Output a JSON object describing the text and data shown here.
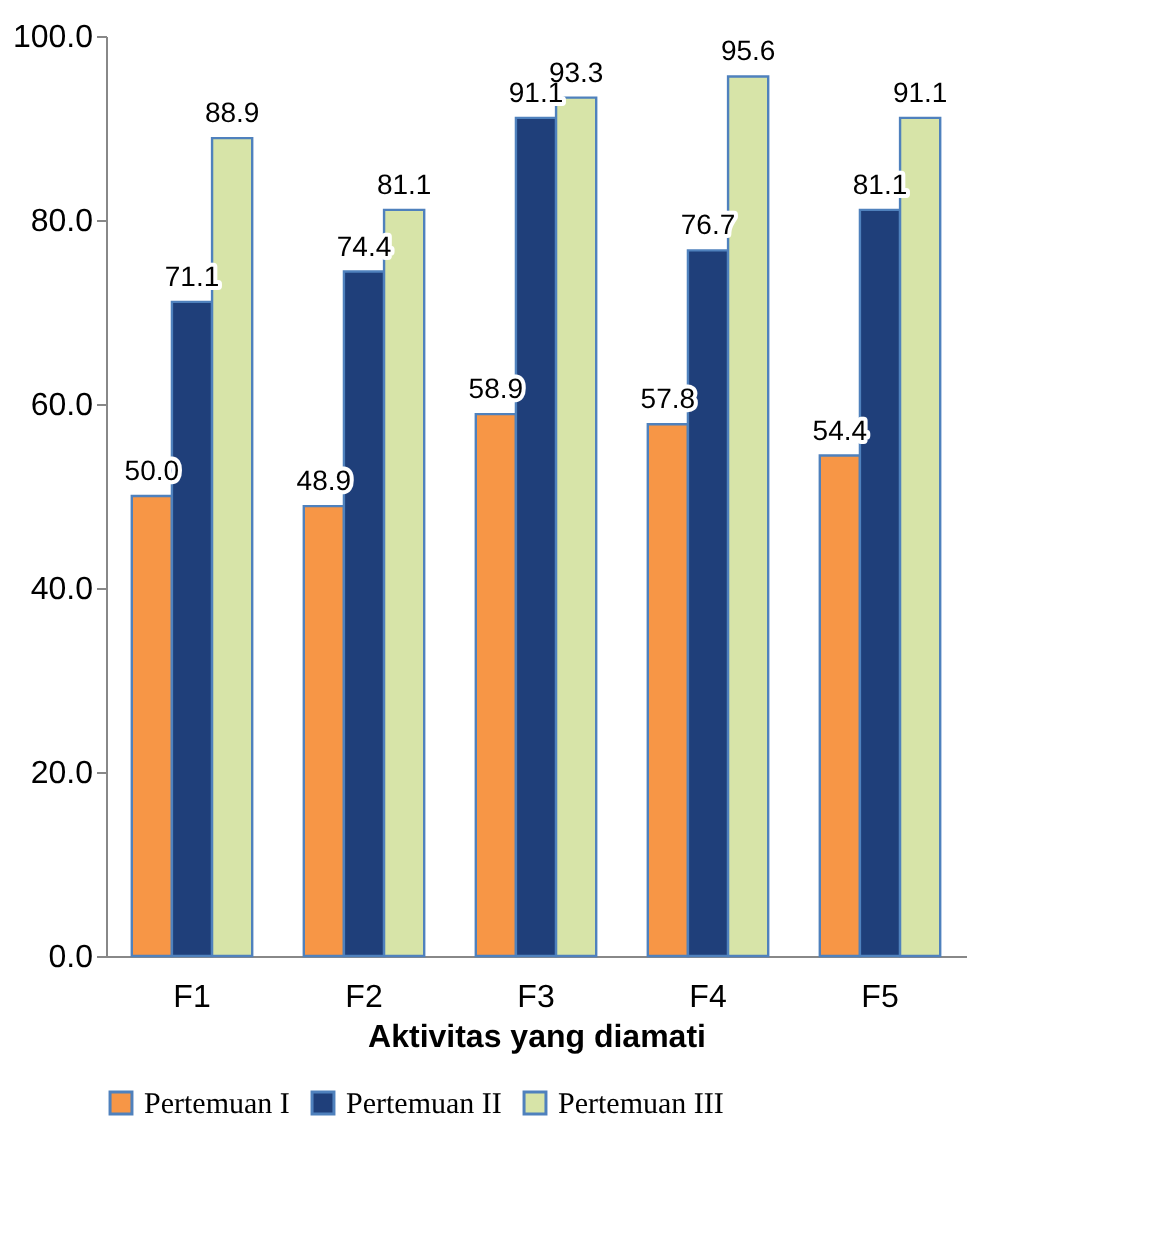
{
  "chart_data": {
    "type": "bar",
    "xlabel": "Aktivitas yang diamati",
    "categories": [
      "F1",
      "F2",
      "F3",
      "F4",
      "F5"
    ],
    "series": [
      {
        "name": "Pertemuan I",
        "color": "#f79646",
        "values": [
          50.0,
          48.9,
          58.9,
          57.8,
          54.4
        ],
        "value_labels": [
          "50.0",
          "48.9",
          "58.9",
          "57.8",
          "54.4"
        ]
      },
      {
        "name": "Pertemuan II",
        "color": "#1f3f7a",
        "values": [
          71.1,
          74.4,
          91.1,
          76.7,
          81.1
        ],
        "value_labels": [
          "71.1",
          "74.4",
          "91.1",
          "76.7",
          "81.1"
        ]
      },
      {
        "name": "Pertemuan III",
        "color": "#d7e4a8",
        "values": [
          88.9,
          81.1,
          93.3,
          95.6,
          91.1
        ],
        "value_labels": [
          "88.9",
          "81.1",
          "93.3",
          "95.6",
          "91.1"
        ]
      }
    ],
    "ylim": [
      0,
      100
    ],
    "yticks": [
      {
        "value": 0,
        "label": "0.0"
      },
      {
        "value": 20,
        "label": "20.0"
      },
      {
        "value": 40,
        "label": "40.0"
      },
      {
        "value": 60,
        "label": "60.0"
      },
      {
        "value": 80,
        "label": "80.0"
      },
      {
        "value": 100,
        "label": "100.0"
      }
    ],
    "grid": false,
    "legend": "bottom"
  }
}
